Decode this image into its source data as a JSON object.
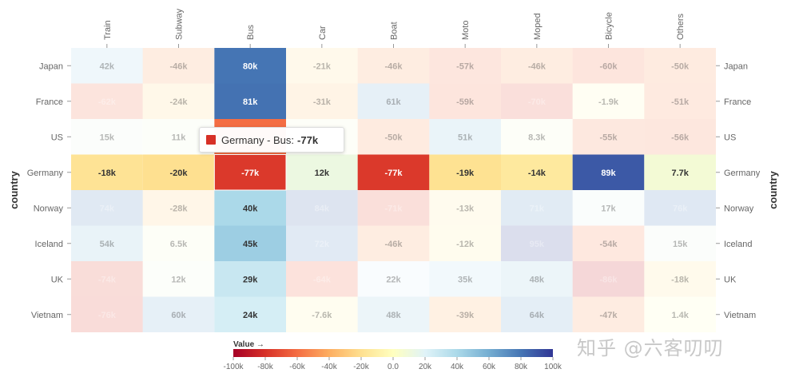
{
  "chart_data": {
    "type": "heatmap",
    "x_categories": [
      "Train",
      "Subway",
      "Bus",
      "Car",
      "Boat",
      "Moto",
      "Moped",
      "Bicycle",
      "Others"
    ],
    "y_categories": [
      "Japan",
      "France",
      "US",
      "Germany",
      "Norway",
      "Iceland",
      "UK",
      "Vietnam"
    ],
    "y_axis_title": "country",
    "color_scale": {
      "min": -100000,
      "max": 100000,
      "stops": [
        {
          "at": 0.0,
          "color": "#a50026"
        },
        {
          "at": 0.1,
          "color": "#d73027"
        },
        {
          "at": 0.2,
          "color": "#f46d43"
        },
        {
          "at": 0.3,
          "color": "#fdae61"
        },
        {
          "at": 0.4,
          "color": "#fee090"
        },
        {
          "at": 0.5,
          "color": "#ffffbf"
        },
        {
          "at": 0.6,
          "color": "#e0f3f8"
        },
        {
          "at": 0.7,
          "color": "#abd9e9"
        },
        {
          "at": 0.8,
          "color": "#74add1"
        },
        {
          "at": 0.9,
          "color": "#4575b4"
        },
        {
          "at": 1.0,
          "color": "#313695"
        }
      ]
    },
    "highlighted_row": "Germany",
    "faded_opacity": 0.18,
    "cells": [
      [
        "42k",
        "-46k",
        "80k",
        "-21k",
        "-46k",
        "-57k",
        "-46k",
        "-60k",
        "-50k"
      ],
      [
        "-62k",
        "-24k",
        "81k",
        "-31k",
        "61k",
        "-59k",
        "-70k",
        "-1.9k",
        "-51k"
      ],
      [
        "15k",
        "11k",
        "",
        "",
        "-50k",
        "51k",
        "8.3k",
        "-55k",
        "-56k"
      ],
      [
        "-18k",
        "-20k",
        "-77k",
        "12k",
        "-77k",
        "-19k",
        "-14k",
        "89k",
        "7.7k"
      ],
      [
        "74k",
        "-28k",
        "40k",
        "84k",
        "-71k",
        "-13k",
        "71k",
        "17k",
        "76k"
      ],
      [
        "54k",
        "6.5k",
        "45k",
        "72k",
        "-46k",
        "-12k",
        "95k",
        "-54k",
        "15k"
      ],
      [
        "-74k",
        "12k",
        "29k",
        "-64k",
        "22k",
        "35k",
        "48k",
        "-86k",
        "-18k"
      ],
      [
        "-76k",
        "60k",
        "24k",
        "-7.6k",
        "48k",
        "-39k",
        "64k",
        "-47k",
        "1.4k"
      ]
    ],
    "values": [
      [
        42000,
        -46000,
        80000,
        -21000,
        -46000,
        -57000,
        -46000,
        -60000,
        -50000
      ],
      [
        -62000,
        -24000,
        81000,
        -31000,
        61000,
        -59000,
        -70000,
        -1900,
        -51000
      ],
      [
        15000,
        11000,
        -60000,
        8000,
        -50000,
        51000,
        8300,
        -55000,
        -56000
      ],
      [
        -18000,
        -20000,
        -77000,
        12000,
        -77000,
        -19000,
        -14000,
        89000,
        7700
      ],
      [
        74000,
        -28000,
        40000,
        84000,
        -71000,
        -13000,
        71000,
        17000,
        76000
      ],
      [
        54000,
        6500,
        45000,
        72000,
        -46000,
        -12000,
        95000,
        -54000,
        15000
      ],
      [
        -74000,
        12000,
        29000,
        -64000,
        22000,
        35000,
        48000,
        -86000,
        -18000
      ],
      [
        -76000,
        60000,
        24000,
        -7600,
        48000,
        -39000,
        64000,
        -47000,
        1400
      ]
    ],
    "legend": {
      "title": "Value →",
      "ticks": [
        "-100k",
        "-80k",
        "-60k",
        "-40k",
        "-20k",
        "0.0",
        "20k",
        "40k",
        "60k",
        "80k",
        "100k"
      ]
    }
  },
  "tooltip": {
    "label": "Germany - Bus:",
    "value": "-77k",
    "color": "#d73027"
  },
  "watermark": "知乎 @六客叨叨"
}
